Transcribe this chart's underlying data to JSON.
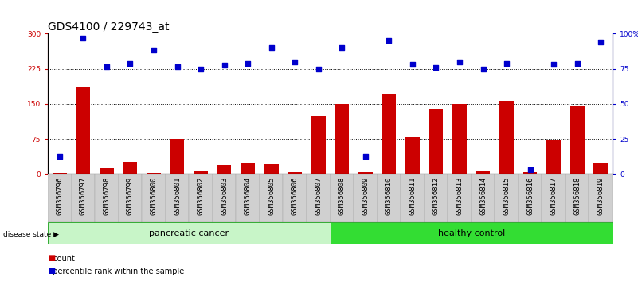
{
  "title": "GDS4100 / 229743_at",
  "samples": [
    "GSM356796",
    "GSM356797",
    "GSM356798",
    "GSM356799",
    "GSM356800",
    "GSM356801",
    "GSM356802",
    "GSM356803",
    "GSM356804",
    "GSM356805",
    "GSM356806",
    "GSM356807",
    "GSM356808",
    "GSM356809",
    "GSM356810",
    "GSM356811",
    "GSM356812",
    "GSM356813",
    "GSM356814",
    "GSM356815",
    "GSM356816",
    "GSM356817",
    "GSM356818",
    "GSM356819"
  ],
  "counts": [
    3,
    185,
    12,
    27,
    2,
    75,
    8,
    20,
    25,
    22,
    4,
    125,
    150,
    5,
    170,
    80,
    140,
    150,
    7,
    157,
    4,
    73,
    147,
    25
  ],
  "percentiles_left_scale": [
    38,
    290,
    230,
    237,
    265,
    230,
    225,
    233,
    237,
    270,
    240,
    225,
    270,
    38,
    285,
    235,
    228,
    240,
    225,
    237,
    10,
    235,
    237,
    283
  ],
  "group_labels": [
    "pancreatic cancer",
    "healthy control"
  ],
  "bar_color": "#cc0000",
  "dot_color": "#0000cc",
  "ylim_left": [
    0,
    300
  ],
  "ylim_right": [
    0,
    100
  ],
  "yticks_left": [
    0,
    75,
    150,
    225,
    300
  ],
  "yticks_right": [
    0,
    25,
    50,
    75,
    100
  ],
  "ytick_labels_right": [
    "0",
    "25",
    "50",
    "75",
    "100%"
  ],
  "grid_values": [
    75,
    150,
    225
  ],
  "title_fontsize": 10,
  "tick_fontsize": 6.5,
  "label_fontsize": 8,
  "legend_fontsize": 7,
  "bg_color": "#d4d4d4"
}
